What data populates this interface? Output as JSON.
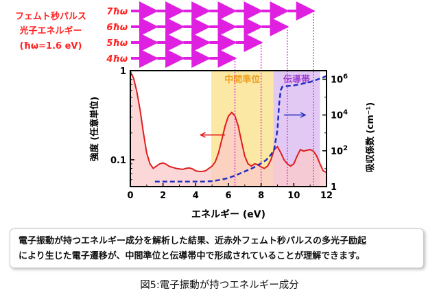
{
  "chart_data": {
    "type": "line",
    "photon_legend": {
      "label_lines": [
        "フェムト秒パルス",
        "光子エネルギー",
        "(ħω=1.6 eV)"
      ],
      "color": "#ff2020"
    },
    "photon_rows": [
      {
        "label": "7ħω",
        "photons": 7,
        "end_energy_ev": 11.2
      },
      {
        "label": "6ħω",
        "photons": 6,
        "end_energy_ev": 9.6
      },
      {
        "label": "5ħω",
        "photons": 5,
        "end_energy_ev": 8.0
      },
      {
        "label": "4ħω",
        "photons": 4,
        "end_energy_ev": 6.4
      }
    ],
    "arrow_color": "#e020e0",
    "xlabel": "エネルギー (eV)",
    "xlim": [
      0,
      12
    ],
    "xticks": [
      "0",
      "2",
      "4",
      "6",
      "8",
      "10",
      "12"
    ],
    "ylabel_left": "強度 (任意単位)",
    "ylim_left_log": [
      0.05,
      1
    ],
    "yticks_left": [
      {
        "value": 1,
        "label": "1"
      },
      {
        "value": 0.1,
        "label": "0.1"
      }
    ],
    "ylabel_right": "吸収係数 (cm⁻¹)",
    "ylim_right_log": [
      1,
      3000000
    ],
    "yticks_right": [
      {
        "value": 1,
        "base": "1",
        "exp": ""
      },
      {
        "value": 100,
        "base": "10",
        "exp": "2"
      },
      {
        "value": 10000,
        "base": "10",
        "exp": "4"
      },
      {
        "value": 1000000,
        "base": "10",
        "exp": "6"
      }
    ],
    "regions": [
      {
        "name": "中間準位",
        "from": 4.95,
        "to": 8.75,
        "color": "#fbe8a4",
        "text_color": "#f0a020"
      },
      {
        "name": "伝導帯",
        "from": 8.75,
        "to": 11.6,
        "color": "#e2c9f4",
        "text_color": "#a040d0"
      }
    ],
    "series": [
      {
        "name": "強度",
        "axis": "left",
        "color": "#e01c1c",
        "fill": "#fbcaca",
        "style": "solid",
        "x": [
          0,
          0.2,
          0.4,
          0.6,
          0.8,
          1.0,
          1.2,
          1.4,
          1.6,
          1.8,
          2.0,
          2.2,
          2.4,
          2.6,
          2.8,
          3.0,
          3.2,
          3.4,
          3.6,
          3.8,
          4.0,
          4.2,
          4.4,
          4.6,
          4.8,
          5.0,
          5.2,
          5.4,
          5.6,
          5.8,
          6.0,
          6.2,
          6.4,
          6.6,
          6.8,
          7.0,
          7.2,
          7.4,
          7.6,
          7.8,
          8.0,
          8.2,
          8.4,
          8.6,
          8.8,
          9.0,
          9.2,
          9.4,
          9.6,
          9.8,
          10.0,
          10.2,
          10.4,
          10.6,
          10.8,
          11.0,
          11.2,
          11.4,
          11.6,
          11.8,
          12.0
        ],
        "values": [
          0.98,
          0.82,
          0.58,
          0.36,
          0.2,
          0.12,
          0.09,
          0.08,
          0.085,
          0.09,
          0.092,
          0.089,
          0.084,
          0.082,
          0.08,
          0.079,
          0.078,
          0.08,
          0.081,
          0.079,
          0.075,
          0.074,
          0.074,
          0.075,
          0.08,
          0.085,
          0.095,
          0.12,
          0.17,
          0.24,
          0.31,
          0.34,
          0.31,
          0.24,
          0.16,
          0.11,
          0.09,
          0.085,
          0.09,
          0.088,
          0.083,
          0.08,
          0.085,
          0.1,
          0.13,
          0.14,
          0.12,
          0.1,
          0.09,
          0.085,
          0.09,
          0.11,
          0.13,
          0.125,
          0.128,
          0.13,
          0.125,
          0.11,
          0.09,
          0.075,
          0.072
        ]
      },
      {
        "name": "吸収係数",
        "axis": "right",
        "color": "#1f2dc0",
        "style": "dashed",
        "x": [
          1.5,
          2,
          3,
          4,
          4.5,
          5.0,
          5.5,
          6.0,
          6.5,
          7.0,
          7.5,
          8.0,
          8.3,
          8.6,
          8.8,
          9.0,
          9.1,
          9.2,
          9.3,
          9.5,
          10,
          10.5,
          11,
          11.5,
          12
        ],
        "values": [
          1.9,
          1.9,
          1.9,
          1.9,
          1.9,
          2,
          2.4,
          3,
          4.5,
          7,
          11,
          20,
          30,
          60,
          120,
          1500,
          40000,
          250000,
          380000,
          400000,
          450000,
          550000,
          700000,
          1000000,
          1500000
        ]
      }
    ],
    "annotations": [
      {
        "type": "arrow",
        "from_x": 5.8,
        "to_x": 4.3,
        "at_value": 0.19,
        "axis": "left",
        "color": "#e01c1c"
      },
      {
        "type": "arrow",
        "from_x": 9.4,
        "to_x": 10.7,
        "at_value": 10000,
        "axis": "right",
        "color": "#1f2dc0"
      }
    ]
  },
  "caption": {
    "line1": "電子振動が持つエネルギー成分を解析した結果、近赤外フェムト秒パルスの多光子励起",
    "line2": "により生じた電子遷移が、中間準位と伝導帯中で形成されていることが理解できます。"
  },
  "figure_label": "図5:電子振動が持つエネルギー成分"
}
